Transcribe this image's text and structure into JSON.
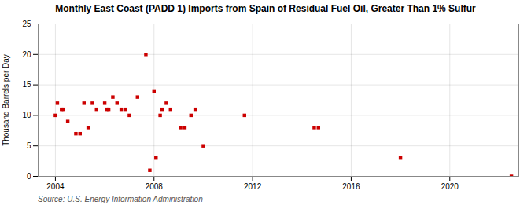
{
  "chart_data": {
    "type": "scatter",
    "title": "Monthly East Coast (PADD 1) Imports from Spain of Residual Fuel Oil, Greater Than 1% Sulfur",
    "ylabel": "Thousand Barrels per Day",
    "caption": "Source: U.S. Energy Information Administration",
    "color": "#cc0000",
    "marker": "square",
    "grid": true,
    "xlim": [
      2003.3,
      2022.8
    ],
    "xticks": [
      2004,
      2008,
      2012,
      2016,
      2020
    ],
    "ylim": [
      0,
      25
    ],
    "yticks": [
      0,
      5,
      10,
      15,
      20,
      25
    ],
    "x": [
      2004.0,
      2004.08,
      2004.25,
      2004.33,
      2004.5,
      2004.83,
      2005.0,
      2005.16,
      2005.33,
      2005.5,
      2005.67,
      2006.0,
      2006.08,
      2006.16,
      2006.33,
      2006.5,
      2006.67,
      2006.83,
      2007.0,
      2007.33,
      2007.67,
      2007.83,
      2008.0,
      2008.08,
      2008.25,
      2008.33,
      2008.5,
      2008.67,
      2009.08,
      2009.25,
      2009.5,
      2009.67,
      2010.0,
      2011.67,
      2014.5,
      2014.67,
      2018.0,
      2022.5
    ],
    "values": [
      10,
      12,
      11,
      11,
      9,
      7,
      7,
      12,
      8,
      12,
      11,
      12,
      11,
      11,
      13,
      12,
      11,
      11,
      10,
      13,
      20,
      1,
      14,
      3,
      10,
      11,
      12,
      11,
      8,
      8,
      10,
      11,
      5,
      10,
      8,
      8,
      3,
      0
    ]
  }
}
